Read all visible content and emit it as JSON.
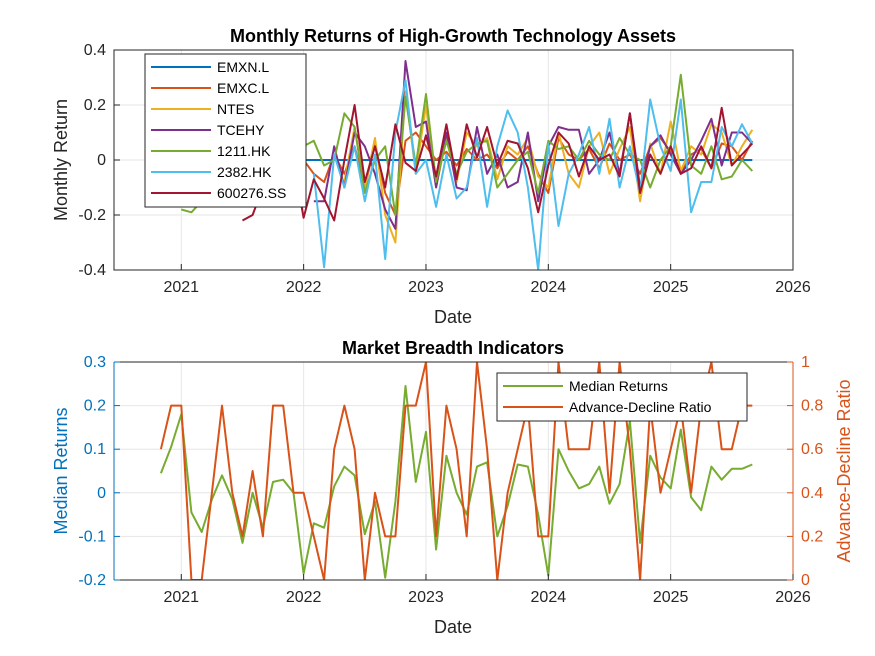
{
  "chart_data": [
    {
      "type": "line",
      "title": "Monthly Returns of High-Growth Technology Assets",
      "xlabel": "Date",
      "ylabel": "Monthly Return",
      "xlim": [
        2020.45,
        2026.0
      ],
      "ylim": [
        -0.4,
        0.4
      ],
      "xticks": [
        "2021",
        "2022",
        "2023",
        "2024",
        "2025",
        "2026"
      ],
      "yticks": [
        "-0.4",
        "-0.2",
        "0",
        "0.2",
        "0.4"
      ],
      "grid": true,
      "legend_position": "top-left",
      "x": [
        2020.833,
        2020.917,
        2021.0,
        2021.083,
        2021.167,
        2021.25,
        2021.333,
        2021.417,
        2021.5,
        2021.583,
        2021.667,
        2021.75,
        2021.833,
        2021.917,
        2022.0,
        2022.083,
        2022.167,
        2022.25,
        2022.333,
        2022.417,
        2022.5,
        2022.583,
        2022.667,
        2022.75,
        2022.833,
        2022.917,
        2023.0,
        2023.083,
        2023.167,
        2023.25,
        2023.333,
        2023.417,
        2023.5,
        2023.583,
        2023.667,
        2023.75,
        2023.833,
        2023.917,
        2024.0,
        2024.083,
        2024.167,
        2024.25,
        2024.333,
        2024.417,
        2024.5,
        2024.583,
        2024.667,
        2024.75,
        2024.833,
        2024.917,
        2025.0,
        2025.083,
        2025.167,
        2025.25,
        2025.333,
        2025.417,
        2025.5,
        2025.583,
        2025.667
      ],
      "series": [
        {
          "name": "EMXN.L",
          "color": "#0072BD",
          "values": [
            0,
            0,
            0,
            0,
            0,
            0,
            0,
            0,
            0,
            0,
            0,
            0,
            0,
            0,
            0,
            0,
            0,
            0,
            0,
            0,
            0,
            0,
            0,
            0,
            0,
            0,
            0,
            0,
            0,
            0,
            0,
            0,
            0,
            0,
            0,
            0,
            0,
            0,
            0,
            0,
            0,
            0,
            0,
            0,
            0,
            0,
            0,
            0,
            0,
            0,
            0,
            0,
            0,
            0,
            0,
            0,
            0,
            0,
            0
          ]
        },
        {
          "name": "EMXC.L",
          "color": "#D95319",
          "values": [
            0,
            0,
            0,
            0,
            0,
            0,
            0,
            0,
            0,
            0,
            0,
            0,
            0,
            0,
            0,
            -0.05,
            -0.08,
            0.02,
            -0.05,
            0.05,
            -0.1,
            0.06,
            -0.12,
            -0.2,
            0.07,
            0.1,
            0.05,
            0,
            0.03,
            -0.02,
            0.04,
            0,
            0.02,
            -0.03,
            0.03,
            0,
            0.05,
            -0.05,
            -0.12,
            0.08,
            0.02,
            0,
            0.04,
            -0.03,
            0.06,
            0,
            0.02,
            -0.05,
            0.05,
            0.08,
            0.03,
            -0.05,
            0.02,
            0.04,
            -0.03,
            0.06,
            0.05,
            0,
            0.07
          ]
        },
        {
          "name": "NTES",
          "color": "#EDB120",
          "values": [
            null,
            null,
            null,
            null,
            null,
            null,
            null,
            null,
            null,
            null,
            null,
            null,
            null,
            null,
            null,
            null,
            null,
            null,
            -0.08,
            0.12,
            -0.1,
            0.08,
            -0.2,
            -0.3,
            0.25,
            -0.05,
            0.2,
            -0.1,
            0.08,
            -0.08,
            0.1,
            0.05,
            0.08,
            -0.07,
            0.05,
            0.02,
            0.08,
            -0.06,
            -0.1,
            0.1,
            -0.05,
            -0.1,
            0.05,
            0.1,
            -0.05,
            0.04,
            0.12,
            -0.15,
            0.06,
            -0.05,
            0.14,
            -0.04,
            0.05,
            0.02,
            0.13,
            0.1,
            -0.02,
            0.05,
            0.11
          ]
        },
        {
          "name": "TCEHY",
          "color": "#7E2F8E",
          "values": [
            null,
            null,
            null,
            null,
            null,
            null,
            null,
            null,
            null,
            null,
            null,
            null,
            null,
            null,
            null,
            -0.15,
            -0.15,
            0.05,
            -0.1,
            0.1,
            0.05,
            -0.05,
            -0.18,
            -0.25,
            0.36,
            0.12,
            0.14,
            -0.1,
            0.1,
            -0.1,
            -0.11,
            0.12,
            -0.05,
            0.02,
            -0.1,
            -0.08,
            0.1,
            -0.15,
            0.05,
            0.12,
            0.11,
            0.11,
            -0.05,
            0,
            0.1,
            -0.05,
            0.17,
            -0.1,
            0.05,
            0.09,
            0.02,
            -0.05,
            0,
            0.07,
            0.15,
            -0.02,
            0.1,
            0.1,
            0.06
          ]
        },
        {
          "name": "1211.HK",
          "color": "#77AC30",
          "values": [
            null,
            null,
            -0.18,
            -0.19,
            -0.15,
            -0.1,
            -0.05,
            0,
            0.05,
            0.1,
            0,
            -0.05,
            0.03,
            0,
            0.05,
            0.07,
            -0.02,
            0,
            0.17,
            0.12,
            -0.12,
            0,
            0.05,
            -0.2,
            0.23,
            -0.02,
            0.24,
            -0.08,
            0.07,
            -0.05,
            0.03,
            0.06,
            0.07,
            -0.1,
            -0.05,
            0,
            0.03,
            -0.12,
            0.07,
            0.04,
            0.05,
            0,
            0.07,
            0.02,
            0,
            0.08,
            0.02,
            0,
            -0.1,
            0,
            0.05,
            0.31,
            -0.02,
            -0.05,
            0.05,
            -0.07,
            -0.06,
            0,
            -0.04
          ]
        },
        {
          "name": "2382.HK",
          "color": "#4DBEEE",
          "values": [
            null,
            null,
            null,
            null,
            null,
            null,
            null,
            null,
            null,
            null,
            null,
            null,
            null,
            null,
            null,
            -0.05,
            -0.39,
            0.02,
            -0.1,
            0.05,
            -0.15,
            0.02,
            -0.36,
            0.1,
            0.29,
            -0.05,
            0,
            -0.17,
            0.02,
            -0.14,
            -0.1,
            0.08,
            -0.17,
            0.05,
            0.18,
            0.1,
            -0.1,
            -0.4,
            0.06,
            -0.24,
            -0.05,
            0.02,
            0.12,
            -0.05,
            0.15,
            -0.1,
            0.05,
            -0.12,
            0.22,
            0.05,
            -0.04,
            0.22,
            -0.19,
            -0.08,
            -0.08,
            0.12,
            0.05,
            0.13,
            0.06
          ]
        },
        {
          "name": "600276.SS",
          "color": "#A2142F",
          "values": [
            null,
            null,
            null,
            null,
            null,
            null,
            null,
            null,
            -0.22,
            -0.2,
            -0.1,
            -0.02,
            0.05,
            0,
            -0.21,
            -0.07,
            -0.14,
            -0.22,
            0,
            0.2,
            -0.08,
            0.05,
            -0.1,
            0.13,
            -0.01,
            -0.04,
            0.09,
            -0.06,
            0.13,
            -0.07,
            0.13,
            0.01,
            0.12,
            -0.02,
            0.07,
            0.06,
            -0.03,
            -0.19,
            -0.02,
            0.1,
            0.06,
            -0.06,
            0.05,
            0,
            0.02,
            -0.06,
            0.17,
            -0.12,
            0.02,
            -0.05,
            0.05,
            -0.05,
            -0.03,
            0.05,
            -0.03,
            0.19,
            -0.02,
            0.02,
            0.06
          ]
        }
      ]
    },
    {
      "type": "line",
      "title": "Market Breadth Indicators",
      "xlabel": "Date",
      "ylabel": "Median Returns",
      "ylabel_right": "Advance-Decline Ratio",
      "xlim": [
        2020.45,
        2026.0
      ],
      "ylim": [
        -0.2,
        0.3
      ],
      "ylim_right": [
        0,
        1
      ],
      "xticks": [
        "2021",
        "2022",
        "2023",
        "2024",
        "2025",
        "2026"
      ],
      "yticks": [
        "-0.2",
        "-0.1",
        "0",
        "0.1",
        "0.2",
        "0.3"
      ],
      "yticks_right": [
        "0",
        "0.2",
        "0.4",
        "0.6",
        "0.8",
        "1"
      ],
      "grid": true,
      "legend_position": "top-right",
      "left_axis_color": "#0072BD",
      "right_axis_color": "#D95319",
      "x": [
        2020.833,
        2020.917,
        2021.0,
        2021.083,
        2021.167,
        2021.25,
        2021.333,
        2021.417,
        2021.5,
        2021.583,
        2021.667,
        2021.75,
        2021.833,
        2021.917,
        2022.0,
        2022.083,
        2022.167,
        2022.25,
        2022.333,
        2022.417,
        2022.5,
        2022.583,
        2022.667,
        2022.75,
        2022.833,
        2022.917,
        2023.0,
        2023.083,
        2023.167,
        2023.25,
        2023.333,
        2023.417,
        2023.5,
        2023.583,
        2023.667,
        2023.75,
        2023.833,
        2023.917,
        2024.0,
        2024.083,
        2024.167,
        2024.25,
        2024.333,
        2024.417,
        2024.5,
        2024.583,
        2024.667,
        2024.75,
        2024.833,
        2024.917,
        2025.0,
        2025.083,
        2025.167,
        2025.25,
        2025.333,
        2025.417,
        2025.5,
        2025.583,
        2025.667
      ],
      "series": [
        {
          "name": "Median Returns",
          "axis": "left",
          "color": "#77AC30",
          "values": [
            0.045,
            0.105,
            0.18,
            -0.045,
            -0.09,
            -0.015,
            0.04,
            -0.015,
            -0.115,
            0,
            -0.08,
            0.025,
            0.03,
            0,
            -0.185,
            -0.07,
            -0.08,
            0.015,
            0.06,
            0.04,
            -0.095,
            -0.02,
            -0.195,
            -0.02,
            0.245,
            0.025,
            0.14,
            -0.13,
            0.085,
            0,
            -0.05,
            0.06,
            0.07,
            -0.1,
            -0.03,
            0.065,
            0.06,
            -0.05,
            -0.19,
            0.1,
            0.05,
            0.01,
            0.02,
            0.06,
            -0.025,
            0.02,
            0.165,
            -0.115,
            0.085,
            0.035,
            0.01,
            0.145,
            -0.01,
            -0.04,
            0.06,
            0.03,
            0.055,
            0.055,
            0.065
          ]
        },
        {
          "name": "Advance-Decline Ratio",
          "axis": "right",
          "color": "#D95319",
          "values": [
            0.6,
            0.8,
            0.8,
            0,
            0,
            0.4,
            0.8,
            0.4,
            0.2,
            0.5,
            0.2,
            0.8,
            0.8,
            0.4,
            0.4,
            0.2,
            0,
            0.6,
            0.8,
            0.6,
            0,
            0.4,
            0.2,
            0.2,
            0.8,
            0.8,
            1,
            0.2,
            0.8,
            0.6,
            0.2,
            1,
            0.6,
            0,
            0.4,
            0.6,
            0.8,
            0.2,
            0.2,
            1,
            0.6,
            0.6,
            0.6,
            1,
            0.4,
            1,
            0.6,
            0,
            0.8,
            0.4,
            0.6,
            0.8,
            0.4,
            0.8,
            1,
            0.6,
            0.6,
            0.8,
            0.8
          ]
        }
      ]
    }
  ]
}
